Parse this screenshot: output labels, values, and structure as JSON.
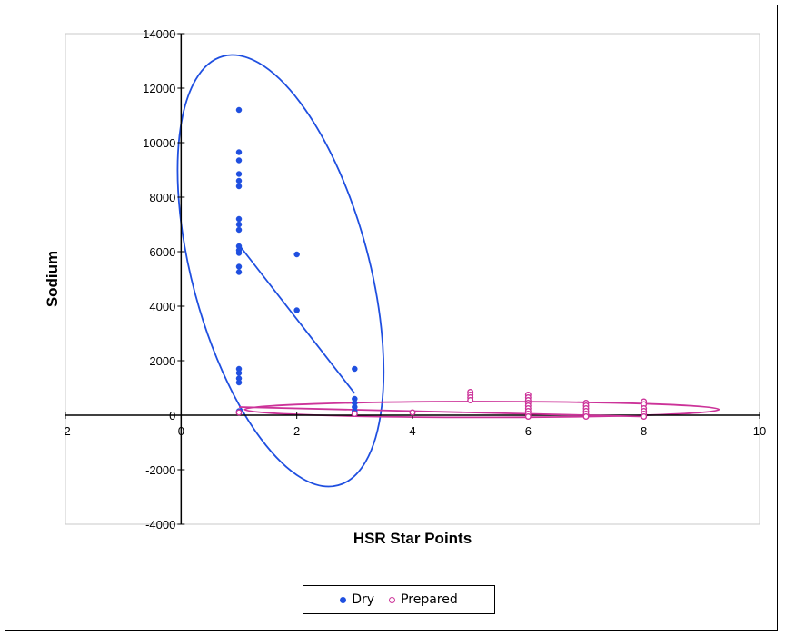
{
  "chart_data": {
    "type": "scatter",
    "title": "",
    "xlabel": "HSR Star Points",
    "ylabel": "Sodium",
    "xlim": [
      -2,
      10
    ],
    "ylim": [
      -4000,
      14000
    ],
    "x_ticks": [
      "-2",
      "0",
      "2",
      "4",
      "6",
      "8",
      "10"
    ],
    "y_ticks": [
      "-4000",
      "-2000",
      "0",
      "2000",
      "4000",
      "6000",
      "8000",
      "10000",
      "12000",
      "14000"
    ],
    "grid": false,
    "legend_position": "bottom",
    "series": [
      {
        "name": "Dry",
        "color": "#1f4fe0",
        "marker": "filled-circle",
        "points": [
          [
            1,
            11200
          ],
          [
            1,
            9650
          ],
          [
            1,
            9350
          ],
          [
            1,
            8850
          ],
          [
            1,
            8600
          ],
          [
            1,
            8400
          ],
          [
            1,
            7200
          ],
          [
            1,
            7000
          ],
          [
            1,
            6800
          ],
          [
            1,
            6200
          ],
          [
            1,
            6050
          ],
          [
            1,
            5950
          ],
          [
            1,
            5450
          ],
          [
            1,
            5250
          ],
          [
            1,
            1700
          ],
          [
            1,
            1550
          ],
          [
            1,
            1350
          ],
          [
            1,
            1200
          ],
          [
            1,
            150
          ],
          [
            2,
            5900
          ],
          [
            2,
            3850
          ],
          [
            3,
            1700
          ],
          [
            3,
            600
          ],
          [
            3,
            450
          ],
          [
            3,
            300
          ],
          [
            3,
            150
          ],
          [
            3,
            50
          ]
        ],
        "trend_line": [
          [
            1,
            6250
          ],
          [
            3,
            800
          ]
        ],
        "ellipse": {
          "center": [
            1.72,
            5300
          ],
          "semi_axis_points": [
            [
              3.25,
              5300
            ],
            [
              1.72,
              13450
            ]
          ],
          "rotation_deg": -15
        }
      },
      {
        "name": "Prepared",
        "color": "#cc3399",
        "marker": "hollow-circle",
        "points": [
          [
            1,
            100
          ],
          [
            3,
            50
          ],
          [
            4,
            100
          ],
          [
            5,
            850
          ],
          [
            5,
            750
          ],
          [
            5,
            650
          ],
          [
            5,
            550
          ],
          [
            6,
            750
          ],
          [
            6,
            650
          ],
          [
            6,
            550
          ],
          [
            6,
            450
          ],
          [
            6,
            350
          ],
          [
            6,
            250
          ],
          [
            6,
            150
          ],
          [
            6,
            50
          ],
          [
            6,
            -50
          ],
          [
            7,
            450
          ],
          [
            7,
            350
          ],
          [
            7,
            250
          ],
          [
            7,
            150
          ],
          [
            7,
            50
          ],
          [
            7,
            -50
          ],
          [
            8,
            500
          ],
          [
            8,
            400
          ],
          [
            8,
            250
          ],
          [
            8,
            150
          ],
          [
            8,
            50
          ],
          [
            8,
            -50
          ]
        ],
        "trend_line": [
          [
            1,
            300
          ],
          [
            8,
            -50
          ]
        ],
        "ellipse": {
          "center": [
            5.2,
            210
          ],
          "semi_axis_points": [
            [
              9.3,
              210
            ],
            [
              5.2,
              500
            ]
          ],
          "rotation_deg": 0
        }
      }
    ]
  }
}
